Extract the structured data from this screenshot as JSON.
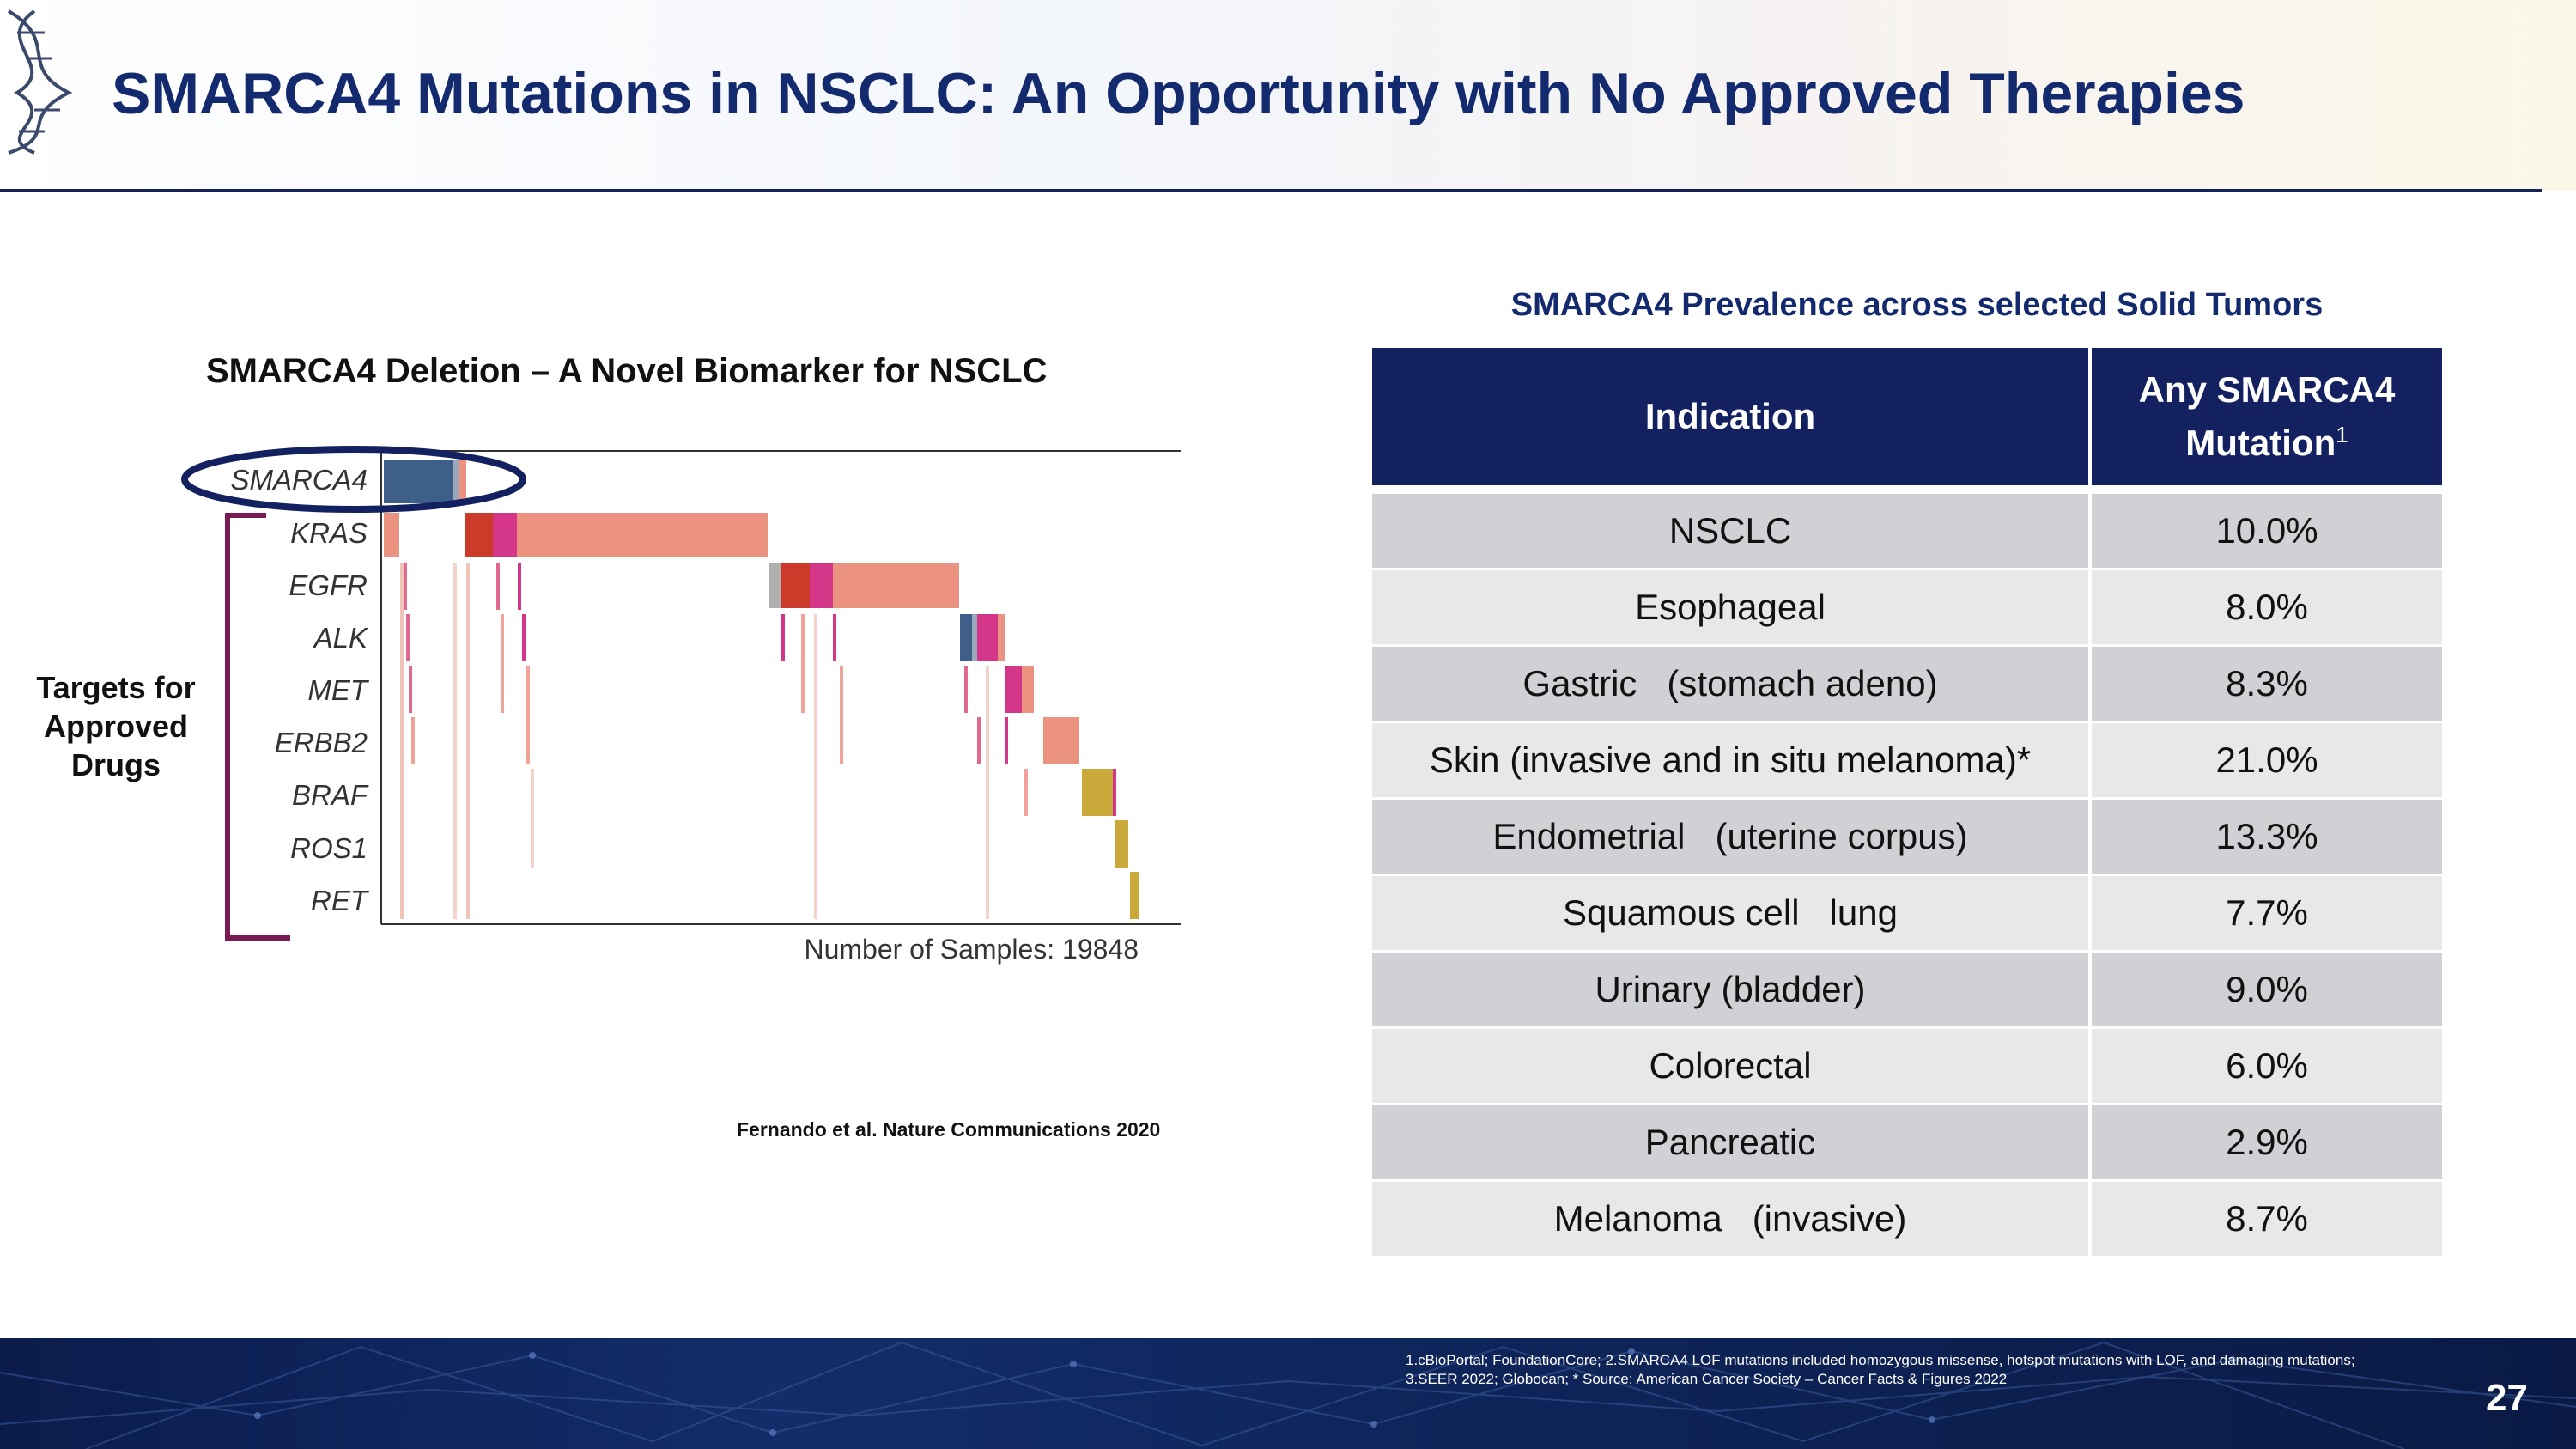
{
  "header": {
    "title": "SMARCA4 Mutations in NSCLC: An Opportunity with No Approved Therapies"
  },
  "left_panel": {
    "chart_title": "SMARCA4 Deletion – A Novel Biomarker for NSCLC",
    "genes": [
      "SMARCA4",
      "KRAS",
      "EGFR",
      "ALK",
      "MET",
      "ERBB2",
      "BRAF",
      "ROS1",
      "RET"
    ],
    "samples_label": "Number of Samples: 19848",
    "targets_label": "Targets for Approved Drugs",
    "citation": "Fernando et al. Nature Communications 2020"
  },
  "table": {
    "title": "SMARCA4 Prevalence across selected Solid Tumors",
    "header_indication": "Indication",
    "header_mutation": "Any SMARCA4 Mutation",
    "header_sup": "1",
    "rows": [
      {
        "indication": "NSCLC",
        "value": "10.0%"
      },
      {
        "indication": "Esophageal",
        "value": "8.0%"
      },
      {
        "indication": "Gastric   (stomach adeno)",
        "value": "8.3%"
      },
      {
        "indication": "Skin (invasive and in situ melanoma)*",
        "value": "21.0%"
      },
      {
        "indication": "Endometrial   (uterine corpus)",
        "value": "13.3%"
      },
      {
        "indication": "Squamous cell   lung",
        "value": "7.7%"
      },
      {
        "indication": "Urinary (bladder)",
        "value": "9.0%"
      },
      {
        "indication": "Colorectal",
        "value": "6.0%"
      },
      {
        "indication": "Pancreatic",
        "value": "2.9%"
      },
      {
        "indication": "Melanoma   (invasive)",
        "value": "8.7%"
      }
    ]
  },
  "footer": {
    "footnote": "1.cBioPortal; FoundationCore;  2.SMARCA4 LOF mutations included homozygous missense, hotspot mutations with LOF, and damaging mutations;  3.SEER 2022; Globocan;  * Source: American Cancer Society – Cancer Facts & Figures 2022",
    "page_number": "27"
  },
  "colors": {
    "navy": "#142160",
    "salmon": "#ec9280",
    "red": "#cc3a2a",
    "magenta": "#d4378a",
    "steel": "#3e5f8a",
    "olive": "#c9a93a",
    "bracket": "#7a1a55"
  }
}
